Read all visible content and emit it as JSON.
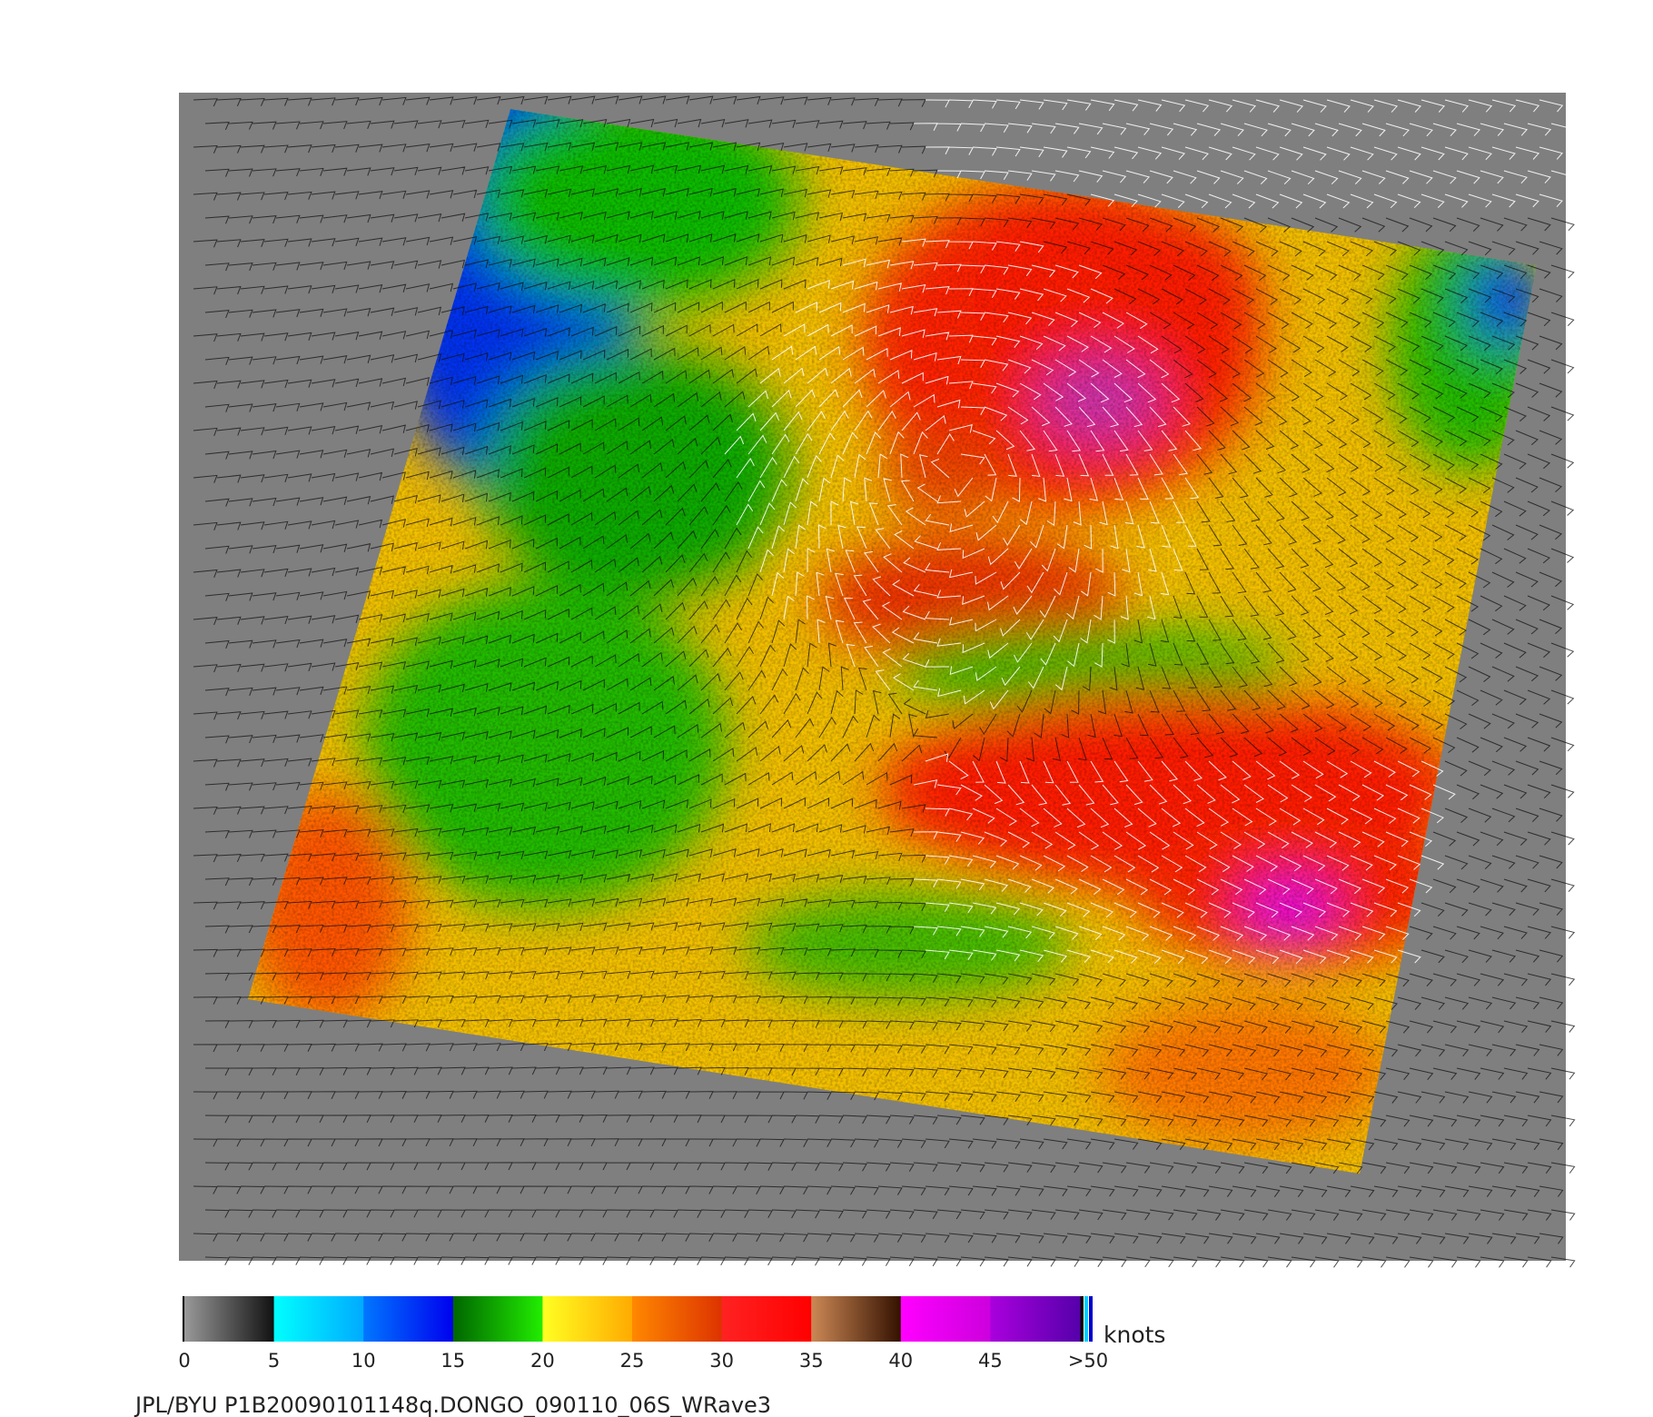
{
  "colorbar": {
    "ticks": [
      "0",
      "5",
      "10",
      "15",
      "20",
      "25",
      "30",
      "35",
      "40",
      "45",
      ">50"
    ],
    "unit": "knots"
  },
  "footer": "JPL/BYU  P1B20090101148q.DONGO_090110_06S_WRave3"
}
